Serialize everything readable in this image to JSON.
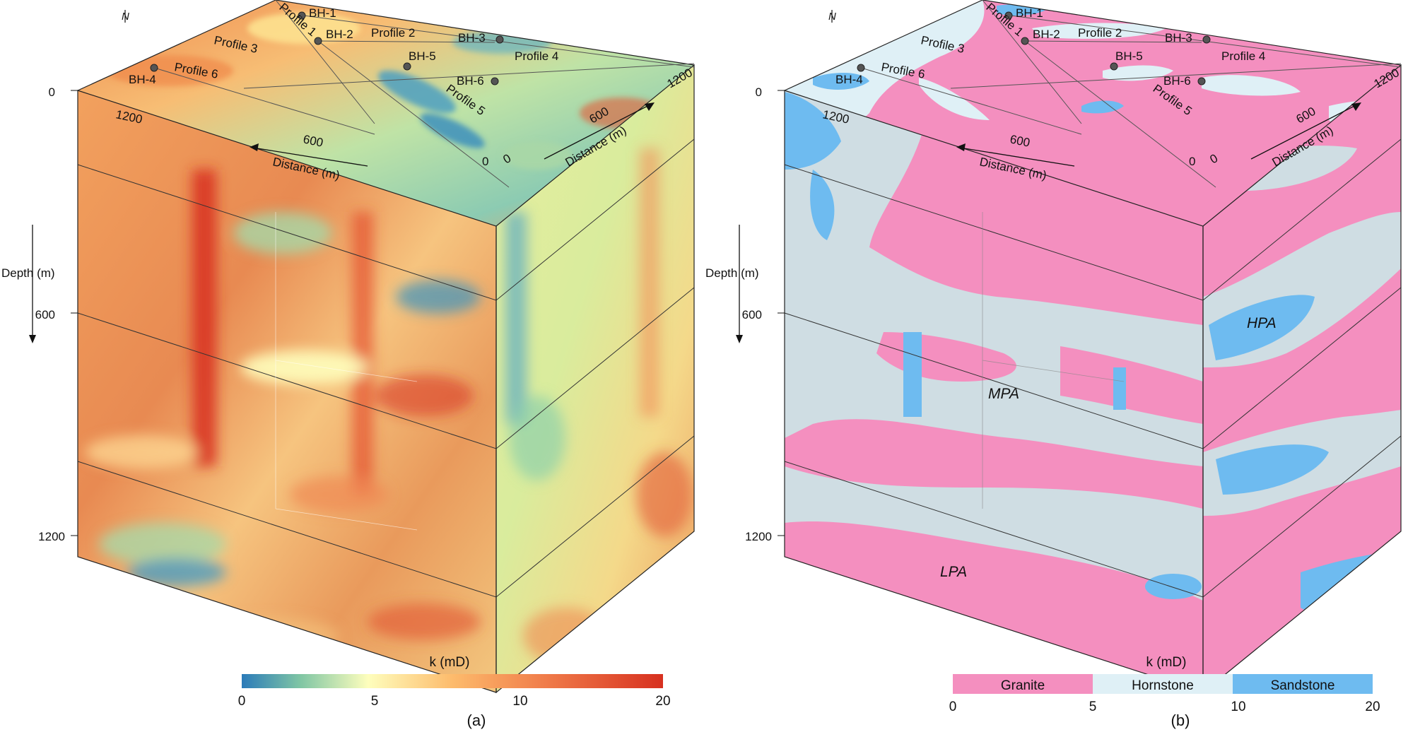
{
  "north_label": "N",
  "depth_axis": {
    "label": "Depth (m)",
    "ticks": [
      "0",
      "600",
      "1200"
    ]
  },
  "distance_axis": {
    "label": "Distance (m)",
    "front_ticks": [
      "1200",
      "600",
      "0"
    ],
    "side_ticks": [
      "0",
      "600",
      "1200"
    ]
  },
  "boreholes": [
    "BH-1",
    "BH-2",
    "BH-3",
    "BH-4",
    "BH-5",
    "BH-6"
  ],
  "profiles": [
    "Profile 1",
    "Profile 2",
    "Profile 3",
    "Profile 4",
    "Profile 5",
    "Profile 6"
  ],
  "panel_a": {
    "caption": "(a)",
    "colorbar": {
      "title": "k (mD)",
      "ticks": [
        "0",
        "5",
        "10",
        "20"
      ],
      "colors": [
        "#2b7bb9",
        "#80c6a4",
        "#fefebd",
        "#fdbb6c",
        "#f07c4a",
        "#d7301f"
      ]
    }
  },
  "panel_b": {
    "caption": "(b)",
    "colorbar": {
      "title": "k (mD)",
      "ticks": [
        "0",
        "5",
        "10",
        "20"
      ],
      "classes": [
        {
          "name": "Granite",
          "color": "#f48fbf"
        },
        {
          "name": "Hornstone",
          "color": "#dff0f6"
        },
        {
          "name": "Sandstone",
          "color": "#6ebbf0"
        }
      ]
    },
    "zones": [
      "HPA",
      "MPA",
      "LPA"
    ]
  }
}
